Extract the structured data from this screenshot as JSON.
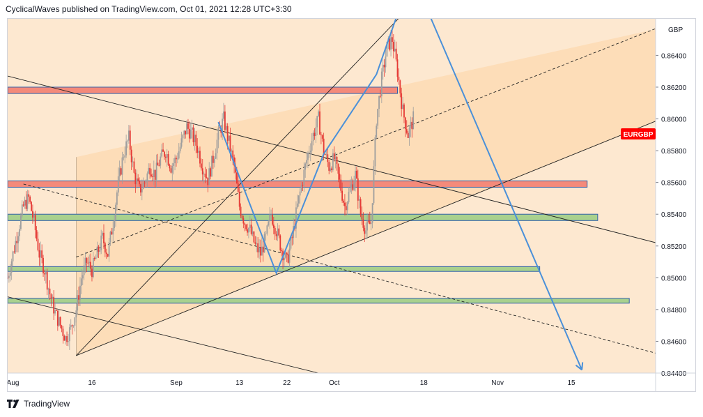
{
  "header": {
    "text": "CyclicalWaves published on TradingView.com, Oct 01, 2021 12:28 UTC+3:30"
  },
  "footer": {
    "brand": "TradingView",
    "logo_icon": "tradingview-logo-icon"
  },
  "colors": {
    "background": "#fde8d0",
    "channel_fill": "#fcd9b0",
    "candle_up": "#9e9e9e",
    "candle_down": "#e53935",
    "wave_line": "#4a90d9",
    "trend_line": "#222222",
    "resistance_zone": "#f48a7a",
    "support_zone": "#a9d18e",
    "zone_border": "#2f5fa8",
    "symbol_badge": "#ff0000"
  },
  "chart_data": {
    "type": "candlestick",
    "symbol": "EURGBP",
    "currency": "GBP",
    "x_ticks": [
      "Aug",
      "16",
      "Sep",
      "13",
      "22",
      "Oct",
      "18",
      "Nov",
      "15"
    ],
    "x_tick_days": [
      1,
      16,
      32,
      44,
      53,
      62,
      79,
      93,
      107
    ],
    "y_ticks": [
      "0.84400",
      "0.84600",
      "0.84800",
      "0.85000",
      "0.85200",
      "0.85400",
      "0.85600",
      "0.85800",
      "0.86000",
      "0.86200",
      "0.86400"
    ],
    "ylim": [
      0.844,
      0.8663
    ],
    "xlim": [
      0,
      123
    ],
    "grid": false,
    "price_path": [
      {
        "day": 0,
        "price": 0.85
      },
      {
        "day": 1,
        "price": 0.8515
      },
      {
        "day": 2,
        "price": 0.853
      },
      {
        "day": 3,
        "price": 0.8545
      },
      {
        "day": 4,
        "price": 0.855
      },
      {
        "day": 5,
        "price": 0.8535
      },
      {
        "day": 6,
        "price": 0.8515
      },
      {
        "day": 7,
        "price": 0.8505
      },
      {
        "day": 8,
        "price": 0.849
      },
      {
        "day": 9,
        "price": 0.8478
      },
      {
        "day": 10,
        "price": 0.847
      },
      {
        "day": 11,
        "price": 0.8462
      },
      {
        "day": 12,
        "price": 0.8468
      },
      {
        "day": 13,
        "price": 0.848
      },
      {
        "day": 14,
        "price": 0.85
      },
      {
        "day": 15,
        "price": 0.851
      },
      {
        "day": 16,
        "price": 0.8505
      },
      {
        "day": 17,
        "price": 0.8515
      },
      {
        "day": 18,
        "price": 0.8525
      },
      {
        "day": 19,
        "price": 0.8515
      },
      {
        "day": 20,
        "price": 0.8535
      },
      {
        "day": 21,
        "price": 0.856
      },
      {
        "day": 22,
        "price": 0.8578
      },
      {
        "day": 23,
        "price": 0.8588
      },
      {
        "day": 24,
        "price": 0.8565
      },
      {
        "day": 25,
        "price": 0.8555
      },
      {
        "day": 26,
        "price": 0.856
      },
      {
        "day": 27,
        "price": 0.857
      },
      {
        "day": 28,
        "price": 0.8565
      },
      {
        "day": 29,
        "price": 0.8575
      },
      {
        "day": 30,
        "price": 0.858
      },
      {
        "day": 31,
        "price": 0.857
      },
      {
        "day": 32,
        "price": 0.8575
      },
      {
        "day": 33,
        "price": 0.8585
      },
      {
        "day": 34,
        "price": 0.8595
      },
      {
        "day": 35,
        "price": 0.859
      },
      {
        "day": 36,
        "price": 0.8582
      },
      {
        "day": 37,
        "price": 0.857
      },
      {
        "day": 38,
        "price": 0.8562
      },
      {
        "day": 39,
        "price": 0.8575
      },
      {
        "day": 40,
        "price": 0.859
      },
      {
        "day": 41,
        "price": 0.86
      },
      {
        "day": 42,
        "price": 0.8585
      },
      {
        "day": 43,
        "price": 0.857
      },
      {
        "day": 44,
        "price": 0.8545
      },
      {
        "day": 45,
        "price": 0.8535
      },
      {
        "day": 46,
        "price": 0.853
      },
      {
        "day": 47,
        "price": 0.852
      },
      {
        "day": 48,
        "price": 0.8515
      },
      {
        "day": 49,
        "price": 0.8525
      },
      {
        "day": 50,
        "price": 0.854
      },
      {
        "day": 51,
        "price": 0.853
      },
      {
        "day": 52,
        "price": 0.8518
      },
      {
        "day": 53,
        "price": 0.851
      },
      {
        "day": 54,
        "price": 0.8525
      },
      {
        "day": 55,
        "price": 0.8545
      },
      {
        "day": 56,
        "price": 0.8562
      },
      {
        "day": 57,
        "price": 0.8578
      },
      {
        "day": 58,
        "price": 0.859
      },
      {
        "day": 59,
        "price": 0.86
      },
      {
        "day": 60,
        "price": 0.858
      },
      {
        "day": 61,
        "price": 0.857
      },
      {
        "day": 62,
        "price": 0.8575
      },
      {
        "day": 63,
        "price": 0.856
      },
      {
        "day": 64,
        "price": 0.8545
      },
      {
        "day": 65,
        "price": 0.8555
      },
      {
        "day": 66,
        "price": 0.8565
      },
      {
        "day": 67,
        "price": 0.854
      },
      {
        "day": 68,
        "price": 0.853
      },
      {
        "day": 69,
        "price": 0.8535
      },
      {
        "day": 70,
        "price": 0.86
      },
      {
        "day": 71,
        "price": 0.8625
      },
      {
        "day": 72,
        "price": 0.8645
      },
      {
        "day": 73,
        "price": 0.865
      },
      {
        "day": 74,
        "price": 0.863
      },
      {
        "day": 75,
        "price": 0.8605
      },
      {
        "day": 76,
        "price": 0.859
      },
      {
        "day": 77,
        "price": 0.86
      }
    ],
    "zones": [
      {
        "kind": "resistance",
        "from": 0.8616,
        "to": 0.862,
        "x0": 0,
        "x1": 74
      },
      {
        "kind": "resistance",
        "from": 0.8557,
        "to": 0.8561,
        "x0": 0,
        "x1": 110
      },
      {
        "kind": "support",
        "from": 0.8536,
        "to": 0.854,
        "x0": 0,
        "x1": 112
      },
      {
        "kind": "support",
        "from": 0.8504,
        "to": 0.8507,
        "x0": 0,
        "x1": 101
      },
      {
        "kind": "support",
        "from": 0.8484,
        "to": 0.8487,
        "x0": 0,
        "x1": 118
      }
    ],
    "trend_lines": [
      {
        "style": "solid",
        "points": [
          [
            13,
            0.8451
          ],
          [
            75,
            0.8666
          ]
        ]
      },
      {
        "style": "solid",
        "points": [
          [
            13,
            0.8451
          ],
          [
            136,
            0.8616
          ]
        ]
      },
      {
        "style": "dashed",
        "points": [
          [
            13,
            0.8513
          ],
          [
            130,
            0.8666
          ]
        ]
      },
      {
        "style": "solid",
        "points": [
          [
            0,
            0.8627
          ],
          [
            136,
            0.8511
          ]
        ]
      },
      {
        "style": "solid",
        "points": [
          [
            0,
            0.8488
          ],
          [
            59,
            0.844
          ]
        ]
      },
      {
        "style": "dashed",
        "points": [
          [
            3,
            0.8559
          ],
          [
            136,
            0.8441
          ]
        ]
      }
    ],
    "channel_box": {
      "x0": 13,
      "x1": 136,
      "lower": [
        [
          13,
          0.8451
        ],
        [
          136,
          0.8616
        ]
      ],
      "upper": [
        [
          13,
          0.8576
        ],
        [
          136,
          0.8666
        ]
      ]
    },
    "wave_path": [
      [
        40,
        0.8598
      ],
      [
        51,
        0.8503
      ],
      [
        60,
        0.8578
      ],
      [
        70,
        0.8628
      ],
      [
        74,
        0.8666
      ]
    ],
    "projection": [
      [
        80,
        0.8666
      ],
      [
        109,
        0.8442
      ]
    ]
  }
}
